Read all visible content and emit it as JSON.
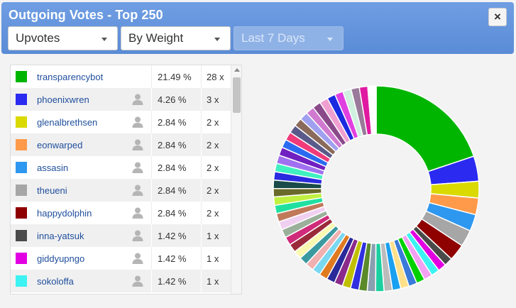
{
  "window": {
    "title": "Outgoing Votes - Top 250",
    "close_label": "×"
  },
  "filters": {
    "type": "Upvotes",
    "sort": "By Weight",
    "period": "Last 7 Days"
  },
  "list": [
    {
      "name": "transparencybot",
      "pct": "21.49 %",
      "count": "28 x",
      "color": "#00b500",
      "has_profile": false
    },
    {
      "name": "phoenixwren",
      "pct": "4.26 %",
      "count": "3 x",
      "color": "#2a2af0",
      "has_profile": true
    },
    {
      "name": "glenalbrethsen",
      "pct": "2.84 %",
      "count": "2 x",
      "color": "#dada00",
      "has_profile": true
    },
    {
      "name": "eonwarped",
      "pct": "2.84 %",
      "count": "2 x",
      "color": "#ff9a4a",
      "has_profile": true
    },
    {
      "name": "assasin",
      "pct": "2.84 %",
      "count": "2 x",
      "color": "#2e97ef",
      "has_profile": true
    },
    {
      "name": "theueni",
      "pct": "2.84 %",
      "count": "2 x",
      "color": "#a6a6a6",
      "has_profile": true
    },
    {
      "name": "happydolphin",
      "pct": "2.84 %",
      "count": "2 x",
      "color": "#8f0000",
      "has_profile": true
    },
    {
      "name": "inna-yatsuk",
      "pct": "1.42 %",
      "count": "1 x",
      "color": "#4a4a4a",
      "has_profile": true
    },
    {
      "name": "giddyupngo",
      "pct": "1.42 %",
      "count": "1 x",
      "color": "#e200e2",
      "has_profile": true
    },
    {
      "name": "sokoloffa",
      "pct": "1.42 %",
      "count": "1 x",
      "color": "#3cf2f2",
      "has_profile": true
    }
  ],
  "chart_data": {
    "type": "pie",
    "donut": true,
    "slices": [
      {
        "label": "transparencybot",
        "value": 21.49,
        "color": "#00b500"
      },
      {
        "label": "phoenixwren",
        "value": 4.26,
        "color": "#2a2af0"
      },
      {
        "label": "glenalbrethsen",
        "value": 2.84,
        "color": "#dada00"
      },
      {
        "label": "eonwarped",
        "value": 2.84,
        "color": "#ff9a4a"
      },
      {
        "label": "assasin",
        "value": 2.84,
        "color": "#2e97ef"
      },
      {
        "label": "theueni",
        "value": 2.84,
        "color": "#a6a6a6"
      },
      {
        "label": "happydolphin",
        "value": 2.84,
        "color": "#8f0000"
      },
      {
        "label": "inna-yatsuk",
        "value": 1.42,
        "color": "#4a4a4a"
      },
      {
        "label": "giddyupngo",
        "value": 1.42,
        "color": "#e200e2"
      },
      {
        "label": "sokoloffa",
        "value": 1.42,
        "color": "#3cf2f2"
      },
      {
        "label": "",
        "value": 1.42,
        "color": "#f2a0f2"
      },
      {
        "label": "",
        "value": 1.42,
        "color": "#00d000"
      },
      {
        "label": "",
        "value": 1.42,
        "color": "#3a7ad8"
      },
      {
        "label": "",
        "value": 1.42,
        "color": "#ffe08a"
      },
      {
        "label": "",
        "value": 1.42,
        "color": "#1aa0f0"
      },
      {
        "label": "",
        "value": 1.42,
        "color": "#bcbcbc"
      },
      {
        "label": "",
        "value": 1.42,
        "color": "#1ad0a0"
      },
      {
        "label": "",
        "value": 1.42,
        "color": "#8aa0b0"
      },
      {
        "label": "",
        "value": 1.42,
        "color": "#5a8a2a"
      },
      {
        "label": "",
        "value": 1.42,
        "color": "#3030e0"
      },
      {
        "label": "",
        "value": 1.42,
        "color": "#c0c000"
      },
      {
        "label": "",
        "value": 1.42,
        "color": "#8a2a8a"
      },
      {
        "label": "",
        "value": 1.42,
        "color": "#2a2a9a"
      },
      {
        "label": "",
        "value": 1.42,
        "color": "#e07a20"
      },
      {
        "label": "",
        "value": 1.42,
        "color": "#7ad8f0"
      },
      {
        "label": "",
        "value": 1.42,
        "color": "#f0b0b0"
      },
      {
        "label": "",
        "value": 1.42,
        "color": "#3a9aa0"
      },
      {
        "label": "",
        "value": 1.42,
        "color": "#f8f8b0"
      },
      {
        "label": "",
        "value": 1.42,
        "color": "#9a2a3a"
      },
      {
        "label": "",
        "value": 1.42,
        "color": "#d02a7a"
      },
      {
        "label": "",
        "value": 1.42,
        "color": "#9ab09a"
      },
      {
        "label": "",
        "value": 1.42,
        "color": "#f0d0f0"
      },
      {
        "label": "",
        "value": 1.42,
        "color": "#c07a5a"
      },
      {
        "label": "",
        "value": 1.42,
        "color": "#20e0a0"
      },
      {
        "label": "",
        "value": 1.42,
        "color": "#c0f040"
      },
      {
        "label": "",
        "value": 1.42,
        "color": "#6a6a2a"
      },
      {
        "label": "",
        "value": 1.42,
        "color": "#1a4a4a"
      },
      {
        "label": "",
        "value": 1.42,
        "color": "#2a2ae0"
      },
      {
        "label": "",
        "value": 1.42,
        "color": "#40f0c0"
      },
      {
        "label": "",
        "value": 1.42,
        "color": "#a070f0"
      },
      {
        "label": "",
        "value": 1.42,
        "color": "#7020c0"
      },
      {
        "label": "",
        "value": 1.42,
        "color": "#2a6af0"
      },
      {
        "label": "",
        "value": 1.42,
        "color": "#f03a7a"
      },
      {
        "label": "",
        "value": 1.42,
        "color": "#5a5a8a"
      },
      {
        "label": "",
        "value": 1.42,
        "color": "#8a6a5a"
      },
      {
        "label": "",
        "value": 1.42,
        "color": "#a0a0f0"
      },
      {
        "label": "",
        "value": 1.42,
        "color": "#d07ad0"
      },
      {
        "label": "",
        "value": 1.42,
        "color": "#8a4a8a"
      },
      {
        "label": "",
        "value": 1.42,
        "color": "#f0a0d0"
      },
      {
        "label": "",
        "value": 1.42,
        "color": "#1a2ae0"
      },
      {
        "label": "",
        "value": 1.42,
        "color": "#e040e0"
      },
      {
        "label": "",
        "value": 1.42,
        "color": "#d0f0e0"
      },
      {
        "label": "",
        "value": 1.42,
        "color": "#9a7a9a"
      },
      {
        "label": "",
        "value": 1.42,
        "color": "#e01aa0"
      },
      {
        "label": "",
        "value": 1.42,
        "color": "#ffffff"
      }
    ]
  }
}
